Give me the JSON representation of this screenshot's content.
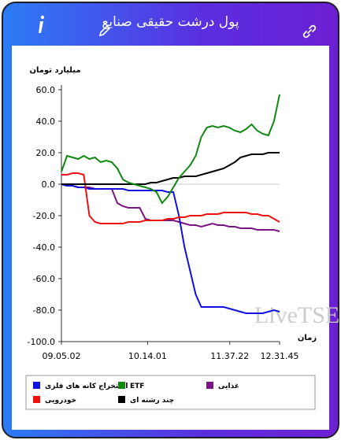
{
  "header": {
    "title": "پول درشت حقیقی صنایع"
  },
  "chart_data": {
    "type": "line",
    "y_label": "میلیارد تومان",
    "x_label": "زمان",
    "watermark": "LiveTSE.ir",
    "xlim": [
      0,
      39
    ],
    "xticks": [
      {
        "value": 0,
        "label": "09.05.02"
      },
      {
        "value": 15.4,
        "label": "10.14.01"
      },
      {
        "value": 30.1,
        "label": "11.37.22"
      },
      {
        "value": 39,
        "label": "12.31.45"
      }
    ],
    "ylim": [
      -100,
      60
    ],
    "yticks": [
      {
        "value": -100,
        "label": "-100.0"
      },
      {
        "value": -80,
        "label": "-80.0"
      },
      {
        "value": -60,
        "label": "-60.0"
      },
      {
        "value": -40,
        "label": "-40.0"
      },
      {
        "value": -20,
        "label": "-20.0"
      },
      {
        "value": 0,
        "label": "0.0"
      },
      {
        "value": 20,
        "label": "20.0"
      },
      {
        "value": 40,
        "label": "40.0"
      },
      {
        "value": 60,
        "label": "60.0"
      }
    ],
    "grid": false,
    "series": [
      {
        "name": "استخراج کانه های فلزی",
        "color": "#1010e0",
        "values": [
          0,
          -1,
          -1,
          -2,
          -2,
          -3,
          -3,
          -3,
          -3,
          -3,
          -3,
          -3,
          -4,
          -4,
          -4,
          -4,
          -4,
          -4,
          -4,
          -5,
          -5,
          -20,
          -40,
          -55,
          -70,
          -78,
          -78,
          -78,
          -78,
          -78,
          -79,
          -80,
          -81,
          -82,
          -82,
          -82,
          -82,
          -81,
          -80,
          -81
        ]
      },
      {
        "name": "ETF",
        "color": "#118811",
        "values": [
          8,
          18,
          17,
          16,
          18,
          16,
          17,
          14,
          15,
          14,
          10,
          3,
          1,
          0,
          -1,
          -2,
          -3,
          -5,
          -12,
          -8,
          -2,
          4,
          8,
          12,
          18,
          30,
          36,
          37,
          36,
          37,
          36,
          34,
          33,
          35,
          38,
          34,
          32,
          31,
          40,
          57
        ]
      },
      {
        "name": "غذایی",
        "color": "#7a1585",
        "values": [
          0,
          -1,
          -1,
          -2,
          -2,
          -2,
          -3,
          -3,
          -3,
          -3,
          -12,
          -14,
          -15,
          -15,
          -15,
          -22,
          -23,
          -23,
          -23,
          -23,
          -23,
          -24,
          -25,
          -26,
          -26,
          -27,
          -26,
          -25,
          -26,
          -26,
          -27,
          -27,
          -28,
          -28,
          -28,
          -29,
          -29,
          -29,
          -29,
          -30
        ]
      },
      {
        "name": "خودرویی",
        "color": "#ee1111",
        "values": [
          6,
          6,
          7,
          7,
          6,
          -20,
          -24,
          -25,
          -25,
          -25,
          -25,
          -25,
          -24,
          -24,
          -24,
          -23,
          -23,
          -23,
          -23,
          -22,
          -22,
          -21,
          -21,
          -20,
          -20,
          -20,
          -19,
          -19,
          -19,
          -18,
          -18,
          -18,
          -18,
          -18,
          -19,
          -19,
          -20,
          -20,
          -22,
          -24
        ]
      },
      {
        "name": "چند رشته ای",
        "color": "#000000",
        "values": [
          0,
          0,
          0,
          0,
          0,
          0,
          0,
          0,
          0,
          0,
          0,
          0,
          0,
          0,
          0,
          0,
          1,
          1,
          2,
          3,
          4,
          4,
          5,
          5,
          5,
          6,
          7,
          8,
          9,
          10,
          12,
          14,
          17,
          18,
          19,
          19,
          19,
          20,
          20,
          20
        ]
      }
    ]
  }
}
